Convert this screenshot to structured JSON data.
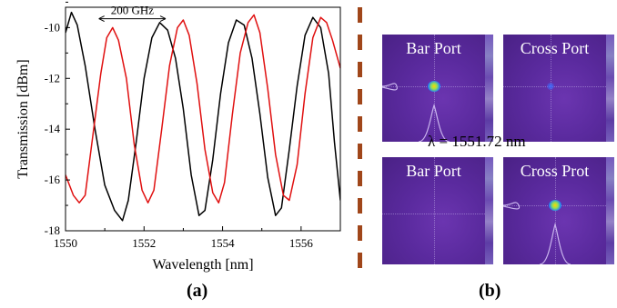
{
  "chart_data": {
    "type": "line",
    "xlabel": "Wavelength [nm]",
    "ylabel": "Transmission [dBm]",
    "xlim": [
      1550,
      1557
    ],
    "ylim": [
      -18,
      -9.2
    ],
    "xticks": [
      1550,
      1552,
      1554,
      1556
    ],
    "yticks": [
      -18,
      -16,
      -14,
      -12,
      -10
    ],
    "series": [
      {
        "color": "#000000",
        "peaks": [
          1550.05,
          1551.0,
          1552.62,
          1554.18,
          1555.72
        ],
        "valleys": [
          1550.15,
          1551.78,
          1553.4,
          1554.95,
          1556.5
        ],
        "points": [
          [
            1550.0,
            -10.2
          ],
          [
            1550.15,
            -9.4
          ],
          [
            1550.3,
            -9.9
          ],
          [
            1550.5,
            -11.5
          ],
          [
            1550.75,
            -14
          ],
          [
            1551.0,
            -16.2
          ],
          [
            1551.25,
            -17.2
          ],
          [
            1551.45,
            -17.6
          ],
          [
            1551.6,
            -16.8
          ],
          [
            1551.8,
            -14.5
          ],
          [
            1552.0,
            -12
          ],
          [
            1552.2,
            -10.4
          ],
          [
            1552.4,
            -9.8
          ],
          [
            1552.6,
            -10.1
          ],
          [
            1552.8,
            -11.2
          ],
          [
            1553.0,
            -13.2
          ],
          [
            1553.2,
            -15.8
          ],
          [
            1553.4,
            -17.4
          ],
          [
            1553.55,
            -17.2
          ],
          [
            1553.75,
            -15.2
          ],
          [
            1553.95,
            -12.6
          ],
          [
            1554.15,
            -10.6
          ],
          [
            1554.35,
            -9.7
          ],
          [
            1554.55,
            -9.9
          ],
          [
            1554.75,
            -11.2
          ],
          [
            1554.95,
            -13.4
          ],
          [
            1555.15,
            -15.9
          ],
          [
            1555.35,
            -17.4
          ],
          [
            1555.5,
            -17.1
          ],
          [
            1555.7,
            -14.8
          ],
          [
            1555.9,
            -12.3
          ],
          [
            1556.1,
            -10.3
          ],
          [
            1556.3,
            -9.6
          ],
          [
            1556.5,
            -10.0
          ],
          [
            1556.7,
            -11.8
          ],
          [
            1556.85,
            -14.5
          ],
          [
            1557.0,
            -16.8
          ]
        ]
      },
      {
        "color": "#e01010",
        "points": [
          [
            1550.0,
            -15.8
          ],
          [
            1550.2,
            -16.6
          ],
          [
            1550.35,
            -16.9
          ],
          [
            1550.5,
            -16.6
          ],
          [
            1550.7,
            -14.2
          ],
          [
            1550.9,
            -11.8
          ],
          [
            1551.05,
            -10.4
          ],
          [
            1551.2,
            -10.0
          ],
          [
            1551.35,
            -10.5
          ],
          [
            1551.55,
            -12.0
          ],
          [
            1551.75,
            -14.6
          ],
          [
            1551.95,
            -16.4
          ],
          [
            1552.1,
            -16.9
          ],
          [
            1552.25,
            -16.4
          ],
          [
            1552.45,
            -14.0
          ],
          [
            1552.65,
            -11.5
          ],
          [
            1552.85,
            -10.0
          ],
          [
            1553.0,
            -9.7
          ],
          [
            1553.15,
            -10.3
          ],
          [
            1553.35,
            -12.2
          ],
          [
            1553.55,
            -14.8
          ],
          [
            1553.75,
            -16.5
          ],
          [
            1553.9,
            -16.9
          ],
          [
            1554.05,
            -16.1
          ],
          [
            1554.25,
            -13.4
          ],
          [
            1554.45,
            -11.0
          ],
          [
            1554.65,
            -9.8
          ],
          [
            1554.8,
            -9.5
          ],
          [
            1554.95,
            -10.2
          ],
          [
            1555.15,
            -12.4
          ],
          [
            1555.35,
            -15.0
          ],
          [
            1555.55,
            -16.6
          ],
          [
            1555.7,
            -16.8
          ],
          [
            1555.9,
            -15.4
          ],
          [
            1556.1,
            -12.6
          ],
          [
            1556.3,
            -10.4
          ],
          [
            1556.5,
            -9.6
          ],
          [
            1556.65,
            -9.8
          ],
          [
            1556.8,
            -10.5
          ],
          [
            1557.0,
            -11.6
          ]
        ]
      }
    ],
    "annotation": {
      "text": "200 GHz",
      "from": 1550.85,
      "to": 1552.55,
      "y": -9.65
    }
  },
  "panel_a_label": "(a)",
  "panel_b_label": "(b)",
  "wavelength_caption": "λ = 1551.72 nm",
  "cameras": [
    {
      "title": "Bar Port",
      "spot": "bright"
    },
    {
      "title": "Cross Port",
      "spot": "dim"
    },
    {
      "title": "Bar Port",
      "spot": "none"
    },
    {
      "title": "Cross Prot",
      "spot": "bright"
    }
  ],
  "divider_color": "#a0461a"
}
